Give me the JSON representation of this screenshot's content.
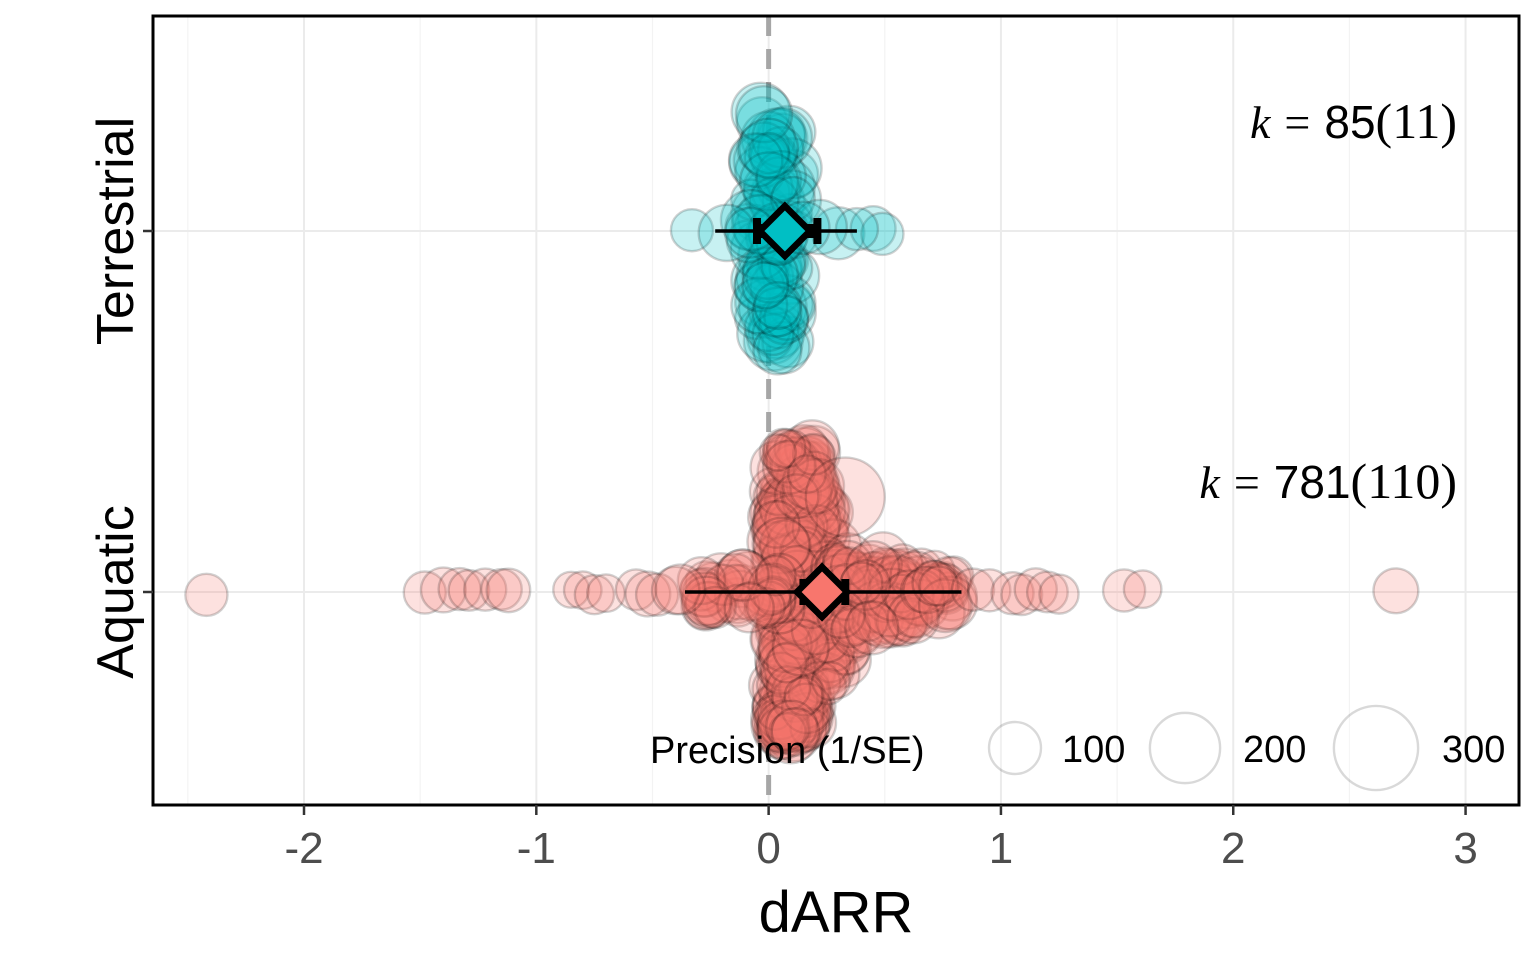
{
  "chart_data": {
    "type": "scatter",
    "xlabel": "dARR",
    "ylabel": "",
    "xlim": [
      -2.65,
      3.23
    ],
    "x_ticks": [
      "-2",
      "-1",
      "0",
      "1",
      "2",
      "3"
    ],
    "x_tick_values": [
      -2,
      -1,
      0,
      1,
      2,
      3
    ],
    "reference_line": 0,
    "grid": true,
    "categories": [
      "Terrestrial",
      "Aquatic"
    ],
    "series": [
      {
        "name": "Terrestrial",
        "color": "#00BFC4",
        "k_label": {
          "k": "k",
          "eq": "=",
          "value": "85",
          "paren": "(11)"
        },
        "estimate": 0.07,
        "ci": [
          -0.05,
          0.21
        ],
        "pi": [
          -0.23,
          0.38
        ],
        "points": [
          {
            "x": -0.33,
            "p": 60
          },
          {
            "x": -0.18,
            "p": 120
          },
          {
            "x": -0.08,
            "p": 90
          },
          {
            "x": 0.3,
            "p": 100
          },
          {
            "x": 0.45,
            "p": 70
          },
          {
            "x": 0.49,
            "p": 60
          },
          {
            "x": 0.38,
            "p": 60
          },
          {
            "x": 0.22,
            "p": 110
          },
          {
            "x": 0.15,
            "p": 100
          }
        ]
      },
      {
        "name": "Aquatic",
        "color": "#F8766D",
        "k_label": {
          "k": "k",
          "eq": "=",
          "value": "781",
          "paren": "(110)"
        },
        "estimate": 0.23,
        "ci": [
          0.15,
          0.33
        ],
        "pi": [
          -0.36,
          0.83
        ],
        "points": [
          {
            "x": -2.42,
            "p": 60
          },
          {
            "x": -1.48,
            "p": 60
          },
          {
            "x": -1.4,
            "p": 70
          },
          {
            "x": -1.33,
            "p": 60
          },
          {
            "x": -1.29,
            "p": 55
          },
          {
            "x": -1.22,
            "p": 60
          },
          {
            "x": -1.15,
            "p": 55
          },
          {
            "x": -1.12,
            "p": 65
          },
          {
            "x": -0.85,
            "p": 40
          },
          {
            "x": -0.8,
            "p": 45
          },
          {
            "x": -0.75,
            "p": 50
          },
          {
            "x": -0.7,
            "p": 45
          },
          {
            "x": -0.57,
            "p": 55
          },
          {
            "x": -0.52,
            "p": 70
          },
          {
            "x": -0.48,
            "p": 60
          },
          {
            "x": -0.4,
            "p": 80
          },
          {
            "x": -0.38,
            "p": 90
          },
          {
            "x": 0.88,
            "p": 60
          },
          {
            "x": 0.95,
            "p": 60
          },
          {
            "x": 1.05,
            "p": 60
          },
          {
            "x": 1.09,
            "p": 55
          },
          {
            "x": 1.15,
            "p": 60
          },
          {
            "x": 1.2,
            "p": 55
          },
          {
            "x": 1.25,
            "p": 50
          },
          {
            "x": 1.53,
            "p": 60
          },
          {
            "x": 1.61,
            "p": 45
          },
          {
            "x": 2.7,
            "p": 70
          }
        ]
      }
    ],
    "legend": {
      "title": "Precision (1/SE)",
      "placement": "bottom-right",
      "sizes": [
        {
          "label": "100",
          "value": 100
        },
        {
          "label": "200",
          "value": 200
        },
        {
          "label": "300",
          "value": 300
        }
      ]
    }
  }
}
